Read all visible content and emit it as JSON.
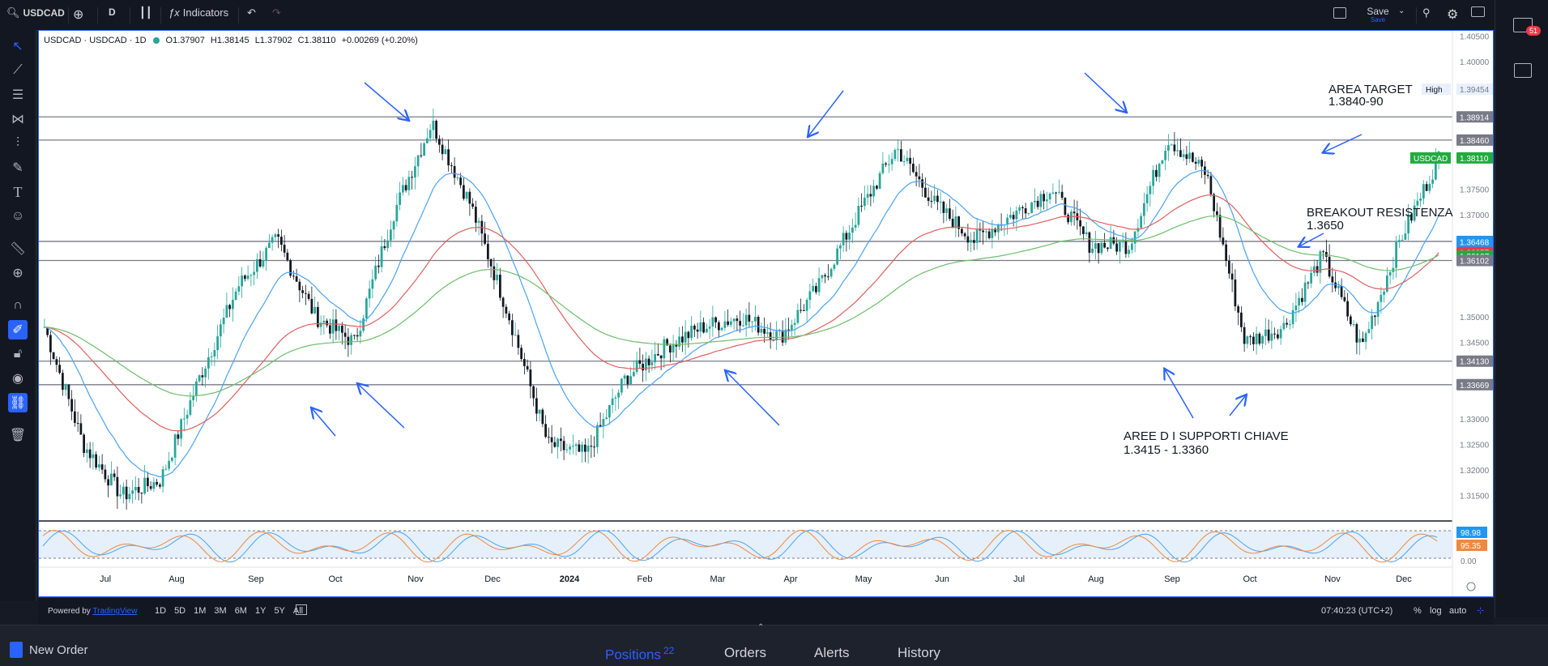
{
  "toolbar": {
    "symbol": "USDCAD",
    "interval": "D",
    "indicators_label": "Indicators",
    "save_label": "Save",
    "save_sub": "Save"
  },
  "legend": {
    "title": "USDCAD · USDCAD · 1D",
    "open": "O1.37907",
    "high": "H1.38145",
    "low": "L1.37902",
    "close": "C1.38110",
    "change": "+0.00269 (+0.20%)"
  },
  "price_axis": {
    "ticks": [
      "1.40500",
      "1.40000",
      "1.39454",
      "1.38914",
      "1.38460",
      "1.38110",
      "1.37500",
      "1.37000",
      "1.36475",
      "1.36468",
      "1.36257",
      "1.36187",
      "1.36102",
      "1.35000",
      "1.34500",
      "1.34130",
      "1.33669",
      "1.33000",
      "1.32500",
      "1.32000",
      "1.31500"
    ],
    "labels": [
      {
        "text": "1.40500",
        "kind": "tick"
      },
      {
        "text": "1.40000",
        "kind": "tick"
      },
      {
        "text": "1.39454",
        "kind": "high"
      },
      {
        "text": "1.38914",
        "kind": "gray"
      },
      {
        "text": "1.38460",
        "kind": "gray"
      },
      {
        "text": "1.38110",
        "kind": "symbol"
      },
      {
        "text": "1.37500",
        "kind": "tick"
      },
      {
        "text": "1.37000",
        "kind": "tick"
      },
      {
        "text": "1.36475",
        "kind": "gray"
      },
      {
        "text": "1.36468",
        "kind": "blue"
      },
      {
        "text": "1.36257",
        "kind": "red"
      },
      {
        "text": "1.36187",
        "kind": "green"
      },
      {
        "text": "1.36102",
        "kind": "gray"
      },
      {
        "text": "1.35000",
        "kind": "tick"
      },
      {
        "text": "1.34500",
        "kind": "tick"
      },
      {
        "text": "1.34130",
        "kind": "gray"
      },
      {
        "text": "1.33669",
        "kind": "gray"
      },
      {
        "text": "1.33000",
        "kind": "tick"
      },
      {
        "text": "1.32500",
        "kind": "tick"
      },
      {
        "text": "1.32000",
        "kind": "tick"
      },
      {
        "text": "1.31500",
        "kind": "tick"
      }
    ],
    "high_label": "High",
    "symbol_label": "USDCAD",
    "osc_labels": [
      "98.98",
      "95.35",
      "0.00"
    ]
  },
  "time_axis": [
    "Jul",
    "Aug",
    "Sep",
    "Oct",
    "Nov",
    "Dec",
    "2024",
    "Feb",
    "Mar",
    "Apr",
    "May",
    "Jun",
    "Jul",
    "Aug",
    "Sep",
    "Oct",
    "Nov",
    "Dec"
  ],
  "annotations": {
    "target_title": "AREA TARGET",
    "target_value": "1.3840-90",
    "breakout_title": "BREAKOUT RESISTENZA",
    "breakout_value": "1.3650",
    "support_title": "AREE D I SUPPORTI CHIAVE",
    "support_value": "1.3415 - 1.3360"
  },
  "bottombar": {
    "powered": "Powered by",
    "brand": "TradingView",
    "ranges": [
      "1D",
      "5D",
      "1M",
      "3M",
      "6M",
      "1Y",
      "5Y",
      "All"
    ],
    "time": "07:40:23 (UTC+2)",
    "pct": "%",
    "log": "log",
    "auto": "auto"
  },
  "panel": {
    "new_order": "New Order",
    "tabs": [
      {
        "label": "Positions",
        "count": "22"
      },
      {
        "label": "Orders",
        "count": ""
      },
      {
        "label": "Alerts",
        "count": ""
      },
      {
        "label": "History",
        "count": ""
      }
    ]
  },
  "notifications": {
    "count": "51"
  },
  "colors": {
    "accent": "#2962ff",
    "bull": "#26a69a",
    "bear": "#131722",
    "ema_fast": "#4aa3f0",
    "ema_mid": "#e06060",
    "ema_slow": "#6bbf6b"
  },
  "chart_data": {
    "type": "candlestick",
    "symbol": "USDCAD",
    "interval": "1D",
    "ylim": [
      1.31,
      1.406
    ],
    "x": [
      "Jul",
      "Aug",
      "Sep",
      "Oct",
      "Nov",
      "Dec",
      "2024",
      "Feb",
      "Mar",
      "Apr",
      "May",
      "Jun",
      "Jul",
      "Aug",
      "Sep",
      "Oct",
      "Nov",
      "Dec"
    ],
    "close_path": [
      1.348,
      1.325,
      1.315,
      1.318,
      1.338,
      1.356,
      1.365,
      1.35,
      1.345,
      1.37,
      1.388,
      1.372,
      1.35,
      1.325,
      1.323,
      1.338,
      1.344,
      1.348,
      1.35,
      1.346,
      1.356,
      1.37,
      1.383,
      1.372,
      1.365,
      1.37,
      1.375,
      1.364,
      1.364,
      1.385,
      1.378,
      1.345,
      1.348,
      1.362,
      1.344,
      1.365,
      1.3811
    ],
    "horizontal_levels": [
      1.38914,
      1.3846,
      1.36475,
      1.36102,
      1.3413,
      1.33669
    ],
    "last_price": 1.3811,
    "high": 1.39454,
    "oscillator": {
      "values": [
        98.98,
        95.35
      ]
    }
  }
}
